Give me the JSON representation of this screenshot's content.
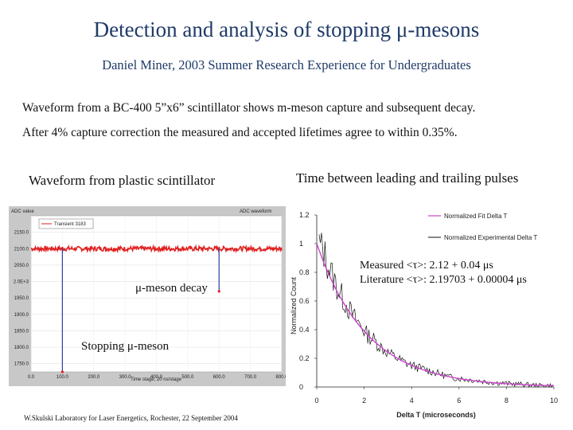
{
  "title": "Detection and analysis of stopping μ-mesons",
  "subtitle": "Daniel Miner, 2003 Summer Research Experience for Undergraduates",
  "description": {
    "line1": "Waveform from a BC-400 5”x6” scintillator shows m-meson capture and subsequent decay.",
    "line2": "After 4% capture correction the measured and accepted lifetimes agree to within 0.35%."
  },
  "left_heading": "Waveform from plastic scintillator",
  "right_heading": "Time between leading and trailing pulses",
  "annotations": {
    "mu_decay": "μ-meson decay",
    "stopping": "Stopping μ-meson",
    "measured": "Measured <τ>: 2.12 + 0.04 μs",
    "literature": "Literature <τ>: 2.19703 + 0.00004 μs"
  },
  "credit": "W.Skulski   Laboratory for Laser Energetics,  Rochester,  22 September 2004",
  "colors": {
    "title": "#1f3a68",
    "waveform": "#e02020",
    "fit_line": "#cc44cc",
    "data": "#111111"
  },
  "chart_data": [
    {
      "type": "line",
      "title": "",
      "header_left": "ADC value",
      "header_right": "ADC waveform",
      "legend": [
        "Transient 3183"
      ],
      "xlabel": "Time stage, 20 ns/stage",
      "x_ticks": [
        "0.0",
        "100.0",
        "200.0",
        "300.0",
        "400.0",
        "500.0",
        "600.0",
        "700.0",
        "800.0"
      ],
      "y_ticks": [
        "2150.0",
        "2100.0",
        "2050.0",
        "2.0E+3",
        "1950.0",
        "1900.0",
        "1850.0",
        "1800.0",
        "1750.0"
      ],
      "xlim": [
        0,
        800
      ],
      "ylim": [
        1725,
        2200
      ],
      "baseline": 2100,
      "pulses": [
        {
          "x": 100,
          "min": 1725
        },
        {
          "x": 600,
          "min": 1970
        }
      ]
    },
    {
      "type": "line",
      "xlabel": "Delta T (microseconds)",
      "ylabel": "Normalized Count",
      "x_ticks": [
        "0",
        "2",
        "4",
        "6",
        "8",
        "10"
      ],
      "y_ticks": [
        "0",
        "0.2",
        "0.4",
        "0.6",
        "0.8",
        "1",
        "1.2"
      ],
      "xlim": [
        0,
        10
      ],
      "ylim": [
        0,
        1.2
      ],
      "series": [
        {
          "name": "Normalized Fit Delta T",
          "tau": 2.12
        },
        {
          "name": "Normalized Experimental Delta T",
          "points": [
            [
              0.1,
              1.0
            ],
            [
              0.3,
              0.94
            ],
            [
              0.5,
              0.84
            ],
            [
              0.7,
              0.76
            ],
            [
              0.9,
              0.68
            ],
            [
              1.1,
              0.62
            ],
            [
              1.3,
              0.56
            ],
            [
              1.5,
              0.5
            ],
            [
              1.7,
              0.46
            ],
            [
              1.9,
              0.42
            ],
            [
              2.1,
              0.37
            ],
            [
              2.4,
              0.33
            ],
            [
              2.7,
              0.28
            ],
            [
              3.0,
              0.24
            ],
            [
              3.3,
              0.21
            ],
            [
              3.6,
              0.18
            ],
            [
              4.0,
              0.15
            ],
            [
              4.4,
              0.13
            ],
            [
              4.8,
              0.11
            ],
            [
              5.2,
              0.09
            ],
            [
              5.6,
              0.07
            ],
            [
              6.0,
              0.06
            ],
            [
              6.5,
              0.05
            ],
            [
              7.0,
              0.04
            ],
            [
              7.5,
              0.03
            ],
            [
              8.0,
              0.025
            ],
            [
              8.5,
              0.02
            ],
            [
              9.0,
              0.015
            ],
            [
              9.5,
              0.01
            ],
            [
              10.0,
              0.01
            ]
          ]
        }
      ]
    }
  ]
}
